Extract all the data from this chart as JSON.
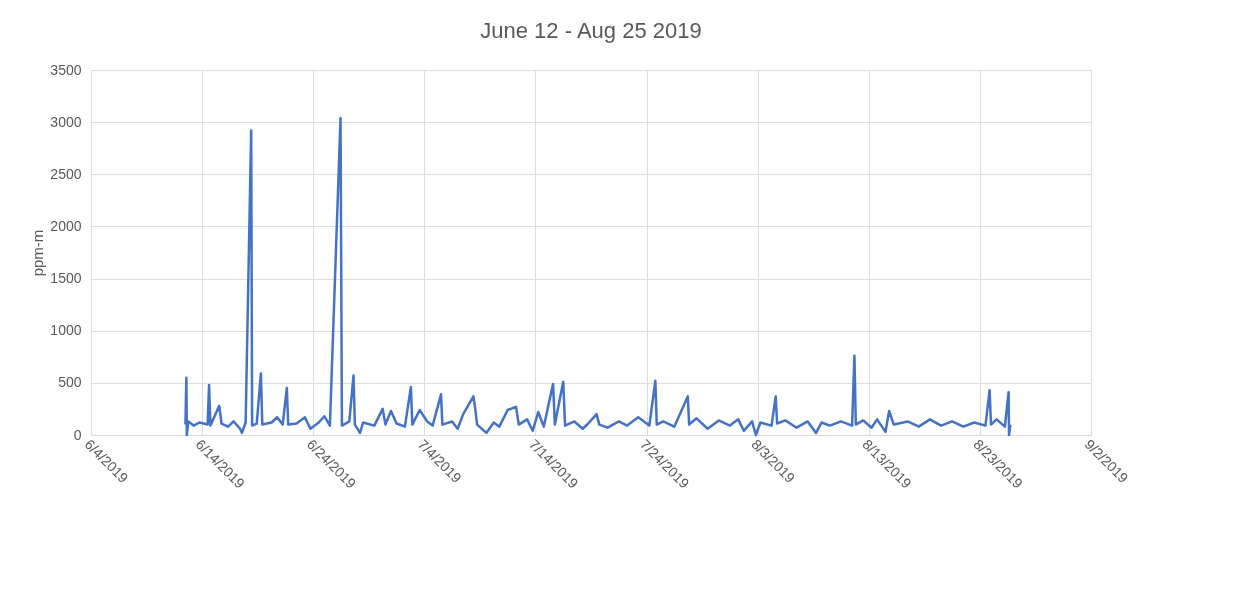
{
  "chart_data": {
    "type": "line",
    "title": "June 12 - Aug 25 2019",
    "ylabel": "ppm-m",
    "x": [
      "2019-06-12T12:00",
      "2019-06-12T14:00",
      "2019-06-12T15:00",
      "2019-06-12T18:00",
      "2019-06-13T06:00",
      "2019-06-13T18:00",
      "2019-06-14T12:00",
      "2019-06-14T15:00",
      "2019-06-14T18:00",
      "2019-06-15T13:00",
      "2019-06-15T18:00",
      "2019-06-16T08:00",
      "2019-06-16T20:00",
      "2019-06-17T10:00",
      "2019-06-17T14:00",
      "2019-06-17T22:00",
      "2019-06-18T10:00",
      "2019-06-18T12:00",
      "2019-06-18T22:00",
      "2019-06-19T07:00",
      "2019-06-19T10:00",
      "2019-06-20T06:00",
      "2019-06-20T18:00",
      "2019-06-21T06:00",
      "2019-06-21T15:00",
      "2019-06-21T18:00",
      "2019-06-22T12:00",
      "2019-06-23T06:00",
      "2019-06-23T18:00",
      "2019-06-24T12:00",
      "2019-06-25T00:00",
      "2019-06-25T12:00",
      "2019-06-26T11:00",
      "2019-06-26T14:00",
      "2019-06-27T06:00",
      "2019-06-27T15:00",
      "2019-06-27T18:00",
      "2019-06-28T05:00",
      "2019-06-28T12:00",
      "2019-06-29T12:00",
      "2019-06-30T06:00",
      "2019-06-30T12:00",
      "2019-07-01T00:00",
      "2019-07-01T12:00",
      "2019-07-02T06:00",
      "2019-07-02T19:00",
      "2019-07-02T22:00",
      "2019-07-03T14:00",
      "2019-07-04T06:00",
      "2019-07-04T18:00",
      "2019-07-05T12:00",
      "2019-07-05T15:00",
      "2019-07-06T12:00",
      "2019-07-07T00:00",
      "2019-07-07T12:00",
      "2019-07-08T10:00",
      "2019-07-08T14:00",
      "2019-07-08T18:00",
      "2019-07-09T14:00",
      "2019-07-10T06:00",
      "2019-07-10T18:00",
      "2019-07-11T12:00",
      "2019-07-12T06:00",
      "2019-07-12T12:00",
      "2019-07-13T06:00",
      "2019-07-13T18:00",
      "2019-07-14T06:00",
      "2019-07-14T18:00",
      "2019-07-15T14:00",
      "2019-07-15T18:00",
      "2019-07-16T12:00",
      "2019-07-16T16:00",
      "2019-07-17T12:00",
      "2019-07-18T06:00",
      "2019-07-18T18:00",
      "2019-07-19T12:00",
      "2019-07-19T18:00",
      "2019-07-20T12:00",
      "2019-07-21T12:00",
      "2019-07-22T06:00",
      "2019-07-23T06:00",
      "2019-07-24T06:00",
      "2019-07-24T19:00",
      "2019-07-24T22:00",
      "2019-07-25T12:00",
      "2019-07-26T12:00",
      "2019-07-27T17:00",
      "2019-07-27T20:00",
      "2019-07-28T12:00",
      "2019-07-29T12:00",
      "2019-07-30T12:00",
      "2019-07-31T12:00",
      "2019-08-01T06:00",
      "2019-08-01T18:00",
      "2019-08-02T12:00",
      "2019-08-02T20:00",
      "2019-08-03T06:00",
      "2019-08-04T06:00",
      "2019-08-04T15:00",
      "2019-08-04T18:00",
      "2019-08-05T12:00",
      "2019-08-06T12:00",
      "2019-08-07T12:00",
      "2019-08-08T06:00",
      "2019-08-08T18:00",
      "2019-08-09T12:00",
      "2019-08-10T12:00",
      "2019-08-11T12:00",
      "2019-08-11T17:00",
      "2019-08-11T20:00",
      "2019-08-12T12:00",
      "2019-08-13T06:00",
      "2019-08-13T18:00",
      "2019-08-14T12:00",
      "2019-08-14T20:00",
      "2019-08-15T06:00",
      "2019-08-16T12:00",
      "2019-08-17T12:00",
      "2019-08-18T12:00",
      "2019-08-19T12:00",
      "2019-08-20T12:00",
      "2019-08-21T12:00",
      "2019-08-22T12:00",
      "2019-08-23T12:00",
      "2019-08-23T21:00",
      "2019-08-24T00:00",
      "2019-08-24T12:00",
      "2019-08-25T06:00",
      "2019-08-25T14:00",
      "2019-08-25T15:00",
      "2019-08-25T18:00"
    ],
    "series": [
      {
        "color": "#4472c4",
        "values": [
          100,
          550,
          0,
          130,
          90,
          120,
          100,
          480,
          90,
          280,
          110,
          80,
          130,
          60,
          20,
          120,
          2920,
          90,
          110,
          590,
          100,
          120,
          170,
          100,
          450,
          100,
          110,
          170,
          60,
          120,
          180,
          90,
          3040,
          90,
          130,
          570,
          100,
          20,
          120,
          90,
          250,
          100,
          230,
          110,
          80,
          460,
          100,
          240,
          130,
          90,
          390,
          100,
          130,
          60,
          200,
          370,
          250,
          100,
          20,
          120,
          80,
          240,
          270,
          100,
          150,
          40,
          220,
          80,
          490,
          100,
          510,
          90,
          130,
          60,
          110,
          200,
          100,
          70,
          130,
          90,
          170,
          90,
          520,
          100,
          130,
          80,
          370,
          100,
          160,
          60,
          140,
          90,
          150,
          40,
          130,
          0,
          120,
          90,
          370,
          110,
          140,
          70,
          130,
          20,
          120,
          90,
          130,
          90,
          760,
          100,
          140,
          70,
          150,
          30,
          230,
          100,
          130,
          80,
          150,
          90,
          130,
          80,
          120,
          90,
          430,
          100,
          150,
          80,
          410,
          0,
          100
        ]
      }
    ],
    "xlim": [
      "2019-06-04",
      "2019-09-02"
    ],
    "xticks": [
      {
        "value": "2019-06-04",
        "label": "6/4/2019"
      },
      {
        "value": "2019-06-14",
        "label": "6/14/2019"
      },
      {
        "value": "2019-06-24",
        "label": "6/24/2019"
      },
      {
        "value": "2019-07-04",
        "label": "7/4/2019"
      },
      {
        "value": "2019-07-14",
        "label": "7/14/2019"
      },
      {
        "value": "2019-07-24",
        "label": "7/24/2019"
      },
      {
        "value": "2019-08-03",
        "label": "8/3/2019"
      },
      {
        "value": "2019-08-13",
        "label": "8/13/2019"
      },
      {
        "value": "2019-08-23",
        "label": "8/23/2019"
      },
      {
        "value": "2019-09-02",
        "label": "9/2/2019"
      }
    ],
    "ylim": [
      0,
      3500
    ],
    "yticks": [
      0,
      500,
      1000,
      1500,
      2000,
      2500,
      3000,
      3500
    ],
    "grid": true,
    "marker": "none",
    "line_style": "solid"
  }
}
